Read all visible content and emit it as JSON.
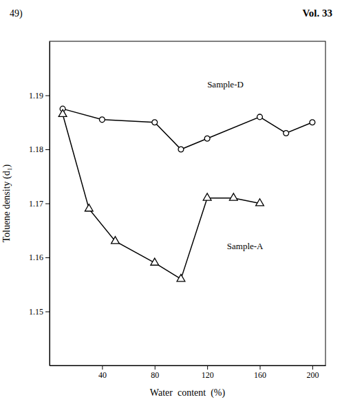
{
  "chart_data": {
    "type": "line",
    "title": "Vol. 33",
    "subtitle": "49)",
    "x_label": "Water  content  (%)",
    "y_label": "Toluene density (d₁)",
    "series": [
      {
        "x": [
          10,
          40,
          80,
          100,
          120,
          160,
          180,
          200
        ],
        "values": [
          1.1875,
          1.1855,
          1.185,
          1.18,
          1.182,
          1.186,
          1.183,
          1.185
        ],
        "color": "#000000",
        "marker": "circle",
        "line_style": "solid"
      },
      {
        "x": [
          10,
          30,
          50,
          80,
          100,
          120,
          140,
          160
        ],
        "values": [
          1.1865,
          1.169,
          1.163,
          1.159,
          1.156,
          1.171,
          1.171,
          1.17
        ],
        "color": "#000000",
        "marker": "triangle",
        "line_style": "solid"
      }
    ],
    "annotations": [
      {
        "text": "Sample-D",
        "x": 120,
        "y": 1.1915
      },
      {
        "text": "Sample-A",
        "x": 135,
        "y": 1.1615
      }
    ],
    "xlim": [
      0,
      210
    ],
    "ylim": [
      1.14,
      1.2
    ],
    "xticks": [
      40,
      80,
      120,
      160,
      200
    ],
    "yticks": [
      1.15,
      1.16,
      1.17,
      1.18,
      1.19
    ],
    "grid": false
  }
}
